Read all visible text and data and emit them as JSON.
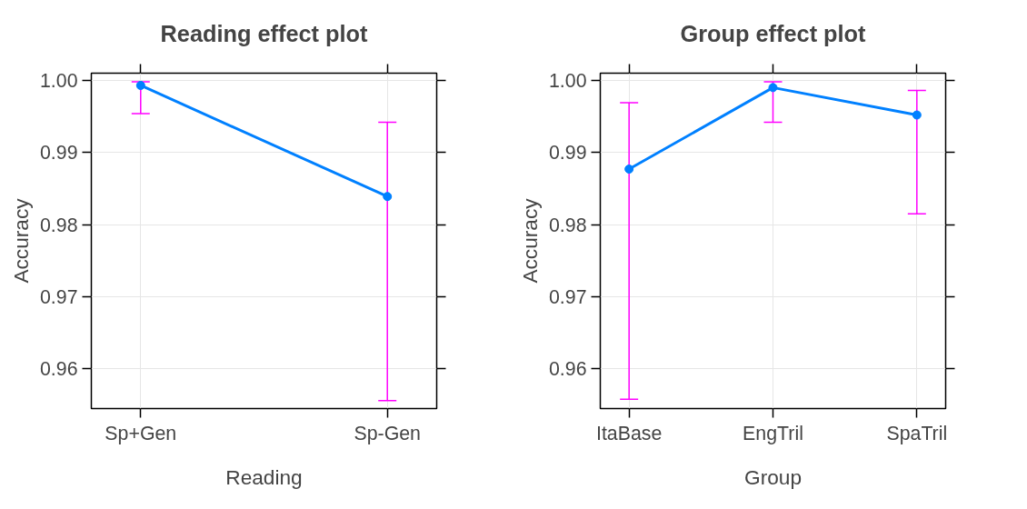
{
  "chart_data": [
    {
      "type": "line",
      "title": "Reading effect plot",
      "xlabel": "Reading",
      "ylabel": "Accuracy",
      "categories": [
        "Sp+Gen",
        "Sp-Gen"
      ],
      "series": [
        {
          "color": "#0080ff",
          "values": [
            0.9993,
            0.9839
          ],
          "errors": [
            [
              0.9954,
              0.9998
            ],
            [
              0.9556,
              0.9942
            ]
          ]
        }
      ],
      "ylim": [
        0.9545,
        1.001
      ],
      "yticks": [
        {
          "value": 0.96,
          "label": "0.96"
        },
        {
          "value": 0.97,
          "label": "0.97"
        },
        {
          "value": 0.98,
          "label": "0.98"
        },
        {
          "value": 0.99,
          "label": "0.99"
        },
        {
          "value": 1.0,
          "label": "1.00"
        }
      ],
      "grid": true,
      "marker": "circle",
      "line_style": "solid"
    },
    {
      "type": "line",
      "title": "Group effect plot",
      "xlabel": "Group",
      "ylabel": "Accuracy",
      "categories": [
        "ItaBase",
        "EngTril",
        "SpaTril"
      ],
      "series": [
        {
          "color": "#0080ff",
          "values": [
            0.9877,
            0.999,
            0.9952
          ],
          "errors": [
            [
              0.9558,
              0.9969
            ],
            [
              0.9942,
              0.9998
            ],
            [
              0.9815,
              0.9986
            ]
          ]
        }
      ],
      "ylim": [
        0.9545,
        1.001
      ],
      "yticks": [
        {
          "value": 0.96,
          "label": "0.96"
        },
        {
          "value": 0.97,
          "label": "0.97"
        },
        {
          "value": 0.98,
          "label": "0.98"
        },
        {
          "value": 0.99,
          "label": "0.99"
        },
        {
          "value": 1.0,
          "label": "1.00"
        }
      ],
      "grid": true,
      "marker": "circle",
      "line_style": "solid"
    }
  ]
}
